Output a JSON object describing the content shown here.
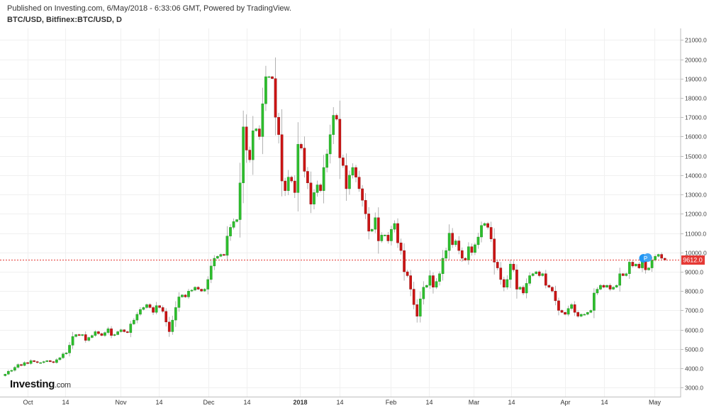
{
  "header": {
    "published": "Published on Investing.com, 6/May/2018 - 6:33:06 GMT, Powered by TradingView.",
    "symbol": "BTC/USD, Bitfinex:BTC/USD, D"
  },
  "logo": {
    "name": "Investing",
    "suffix": ".com"
  },
  "last_price_label": "9612.0",
  "markers": {
    "event": "P"
  },
  "colors": {
    "up": "#2dbe2d",
    "down": "#cc1414",
    "grid": "#f0f0f0",
    "price_line": "#e53935"
  },
  "chart_data": {
    "type": "candlestick",
    "x_tick_labels": [
      "Oct",
      "14",
      "Nov",
      "14",
      "Dec",
      "14",
      "2018",
      "14",
      "Feb",
      "14",
      "Mar",
      "14",
      "Apr",
      "14",
      "May"
    ],
    "y_tick_labels": [
      "3000.0",
      "4000.0",
      "5000.0",
      "6000.0",
      "7000.0",
      "8000.0",
      "9000.0",
      "10000.0",
      "11000.0",
      "12000.0",
      "13000.0",
      "14000.0",
      "15000.0",
      "16000.0",
      "17000.0",
      "18000.0",
      "19000.0",
      "20000.0",
      "21000.0"
    ],
    "ylim": [
      2500,
      21600
    ],
    "last_price": 9612.0,
    "closes": [
      3700,
      3850,
      3900,
      4050,
      4200,
      4150,
      4300,
      4250,
      4400,
      4350,
      4300,
      4300,
      4350,
      4400,
      4350,
      4300,
      4450,
      4550,
      4750,
      4800,
      5200,
      5650,
      5750,
      5700,
      5750,
      5450,
      5600,
      5700,
      5900,
      5800,
      5700,
      5850,
      6050,
      5700,
      5750,
      5900,
      6000,
      5900,
      5850,
      6300,
      6500,
      6800,
      7050,
      7150,
      7300,
      7150,
      6900,
      7250,
      7150,
      6950,
      6400,
      5900,
      6500,
      7150,
      7700,
      7800,
      7700,
      8000,
      8050,
      8200,
      8100,
      8000,
      8100,
      8600,
      9300,
      9700,
      9800,
      9900,
      9850,
      10850,
      11300,
      11600,
      11700,
      13600,
      16500,
      15300,
      14800,
      16300,
      16400,
      16000,
      17700,
      19100,
      19100,
      19000,
      17000,
      16100,
      13700,
      13200,
      13900,
      13700,
      13100,
      15600,
      15400,
      14200,
      13600,
      12500,
      13100,
      13500,
      13200,
      14400,
      15100,
      16100,
      17100,
      16900,
      14900,
      14500,
      13300,
      14000,
      14400,
      13900,
      13300,
      12700,
      12000,
      11100,
      11200,
      11800,
      10600,
      10900,
      10900,
      10600,
      11200,
      11500,
      10500,
      10100,
      9000,
      8800,
      8100,
      7300,
      6700,
      7600,
      8200,
      8300,
      8800,
      8200,
      8500,
      8900,
      9700,
      10100,
      11000,
      10400,
      10600,
      10100,
      9700,
      9600,
      10300,
      10000,
      10400,
      10800,
      11400,
      11500,
      11300,
      10700,
      9500,
      9200,
      8600,
      8200,
      8600,
      9400,
      9100,
      8100,
      8200,
      7900,
      8400,
      8800,
      8900,
      9000,
      8800,
      8900,
      8300,
      8200,
      8000,
      7500,
      7000,
      6900,
      6800,
      7100,
      7300,
      6900,
      6700,
      6800,
      6800,
      6900,
      7000,
      7900,
      8100,
      8300,
      8200,
      8300,
      8100,
      8200,
      8300,
      8900,
      8800,
      8900,
      9500,
      9300,
      9400,
      9200,
      9600,
      9100,
      9200,
      9600,
      9800,
      9900,
      9700,
      9612
    ]
  }
}
